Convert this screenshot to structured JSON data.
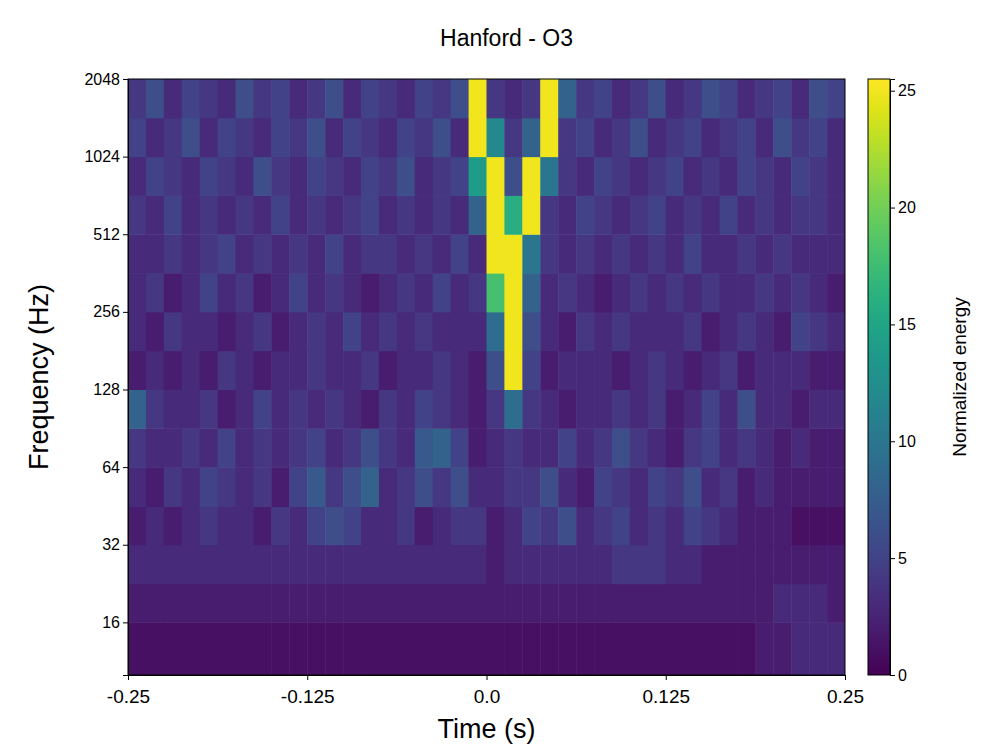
{
  "chart_data": {
    "type": "heatmap",
    "title": "Hanford - O3",
    "x_label": "Time (s)",
    "y_label": "Frequency (Hz)",
    "colorbar_label": "Normalized energy",
    "log": "y",
    "xlim": [
      -0.25,
      0.25
    ],
    "xticks": [
      -0.25,
      -0.125,
      {
        "value": 0,
        "label": "0.0"
      },
      0.125,
      0.25
    ],
    "ylim": [
      10,
      2048
    ],
    "yticks": [
      16,
      32,
      64,
      128,
      256,
      512,
      1024,
      2048
    ],
    "colorbar_range": [
      0,
      25.5
    ],
    "colorbar_ticks": [
      0,
      5,
      10,
      15,
      20,
      25
    ],
    "x_bins": [
      -0.25,
      -0.2375,
      -0.225,
      -0.2125,
      -0.2,
      -0.1875,
      -0.175,
      -0.1625,
      -0.15,
      -0.1375,
      -0.125,
      -0.1125,
      -0.1,
      -0.0875,
      -0.075,
      -0.0625,
      -0.05,
      -0.0375,
      -0.025,
      -0.0125,
      0,
      0.0125,
      0.025,
      0.0375,
      0.05,
      0.0625,
      0.075,
      0.0875,
      0.1,
      0.1125,
      0.125,
      0.1375,
      0.15,
      0.1625,
      0.175,
      0.1875,
      0.2,
      0.2125,
      0.225,
      0.2375,
      0.25
    ],
    "y_bins": [
      10,
      16,
      22.6,
      32,
      45,
      64,
      90.5,
      128,
      181,
      256,
      362,
      512,
      724,
      1024,
      1448,
      2048
    ],
    "z": [
      [
        1,
        1,
        1,
        1,
        1,
        1,
        1,
        1,
        1,
        1,
        1,
        1,
        1,
        1,
        1,
        1,
        1,
        1,
        1,
        1,
        1,
        1,
        1,
        1,
        1,
        1,
        1,
        1,
        1,
        1,
        1,
        1,
        1,
        1,
        1,
        2,
        2,
        3,
        3,
        3
      ],
      [
        2,
        2,
        2,
        2,
        2,
        2,
        2,
        2,
        2,
        2,
        2,
        2,
        2,
        2,
        2,
        2,
        2,
        2,
        2,
        2,
        2,
        2,
        2,
        2,
        2,
        2,
        2,
        2,
        2,
        2,
        2,
        2,
        2,
        2,
        2,
        2,
        3,
        3,
        3,
        2
      ],
      [
        3,
        3,
        3,
        3,
        3,
        3,
        3,
        3,
        3,
        3,
        3,
        3,
        3,
        3,
        3,
        3,
        3,
        3,
        3,
        3,
        2,
        3,
        3,
        3,
        3,
        3,
        3,
        4,
        4,
        4,
        3,
        3,
        2,
        2,
        2,
        2,
        2,
        2,
        2,
        2
      ],
      [
        2,
        3,
        2,
        3,
        4,
        3,
        3,
        2,
        4,
        3,
        5,
        6,
        5,
        3,
        3,
        4,
        2,
        3,
        4,
        4,
        2,
        3,
        5,
        4,
        6,
        3,
        4,
        5,
        3,
        4,
        3,
        5,
        4,
        3,
        2,
        2,
        2,
        1,
        1,
        1
      ],
      [
        3,
        2,
        4,
        3,
        5,
        4,
        3,
        4,
        2,
        5,
        7,
        4,
        6,
        8,
        3,
        4,
        6,
        4,
        6,
        3,
        3,
        4,
        4,
        6,
        3,
        2,
        5,
        4,
        3,
        5,
        4,
        6,
        3,
        4,
        2,
        3,
        2,
        2,
        2,
        2
      ],
      [
        4,
        3,
        3,
        4,
        3,
        5,
        3,
        4,
        3,
        4,
        5,
        3,
        4,
        6,
        4,
        3,
        7,
        8,
        5,
        2,
        3,
        4,
        3,
        3,
        5,
        3,
        4,
        6,
        4,
        3,
        2,
        4,
        5,
        3,
        4,
        3,
        2,
        3,
        2,
        2
      ],
      [
        8,
        4,
        3,
        3,
        4,
        2,
        3,
        5,
        3,
        4,
        3,
        4,
        3,
        2,
        4,
        3,
        5,
        4,
        3,
        2,
        4,
        9,
        4,
        3,
        2,
        3,
        3,
        4,
        3,
        4,
        2,
        3,
        5,
        3,
        6,
        3,
        3,
        2,
        3,
        3
      ],
      [
        2,
        3,
        2,
        3,
        2,
        4,
        3,
        2,
        3,
        3,
        4,
        3,
        3,
        4,
        2,
        3,
        3,
        4,
        3,
        2,
        6,
        25,
        5,
        2,
        3,
        3,
        3,
        2,
        3,
        4,
        3,
        2,
        3,
        4,
        2,
        3,
        3,
        3,
        2,
        2
      ],
      [
        3,
        2,
        4,
        3,
        3,
        2,
        3,
        4,
        2,
        3,
        4,
        3,
        5,
        3,
        4,
        3,
        4,
        3,
        3,
        3,
        9,
        25,
        6,
        3,
        2,
        4,
        3,
        4,
        3,
        3,
        3,
        4,
        2,
        3,
        4,
        3,
        2,
        5,
        4,
        3
      ],
      [
        3,
        4,
        2,
        3,
        5,
        3,
        4,
        2,
        3,
        5,
        3,
        4,
        3,
        2,
        3,
        4,
        3,
        5,
        3,
        4,
        18,
        25,
        8,
        3,
        4,
        3,
        2,
        3,
        4,
        3,
        4,
        3,
        4,
        3,
        3,
        4,
        3,
        4,
        3,
        2
      ],
      [
        3,
        3,
        4,
        3,
        4,
        5,
        3,
        4,
        3,
        4,
        3,
        5,
        3,
        4,
        4,
        3,
        4,
        3,
        5,
        3,
        25,
        25,
        10,
        4,
        3,
        4,
        3,
        4,
        3,
        4,
        3,
        5,
        3,
        3,
        4,
        3,
        4,
        3,
        3,
        3
      ],
      [
        4,
        3,
        5,
        3,
        4,
        3,
        4,
        3,
        5,
        3,
        4,
        3,
        4,
        5,
        3,
        4,
        3,
        4,
        3,
        8,
        25,
        16,
        25,
        4,
        3,
        5,
        4,
        3,
        4,
        5,
        3,
        4,
        3,
        5,
        3,
        4,
        3,
        4,
        4,
        3
      ],
      [
        3,
        5,
        4,
        3,
        5,
        4,
        3,
        6,
        4,
        3,
        5,
        4,
        3,
        5,
        4,
        6,
        3,
        4,
        5,
        14,
        25,
        6,
        25,
        10,
        4,
        3,
        5,
        4,
        3,
        4,
        5,
        3,
        4,
        3,
        5,
        4,
        3,
        5,
        4,
        3
      ],
      [
        5,
        3,
        4,
        6,
        3,
        5,
        4,
        3,
        5,
        4,
        6,
        3,
        5,
        4,
        3,
        5,
        4,
        6,
        3,
        25,
        12,
        4,
        8,
        25,
        4,
        5,
        3,
        4,
        6,
        3,
        4,
        5,
        3,
        4,
        5,
        3,
        6,
        4,
        5,
        3
      ],
      [
        4,
        6,
        3,
        5,
        4,
        3,
        6,
        4,
        5,
        3,
        4,
        6,
        3,
        5,
        4,
        3,
        5,
        4,
        6,
        25,
        4,
        3,
        4,
        25,
        8,
        4,
        5,
        3,
        4,
        6,
        3,
        4,
        6,
        5,
        3,
        4,
        5,
        3,
        6,
        5
      ]
    ]
  }
}
